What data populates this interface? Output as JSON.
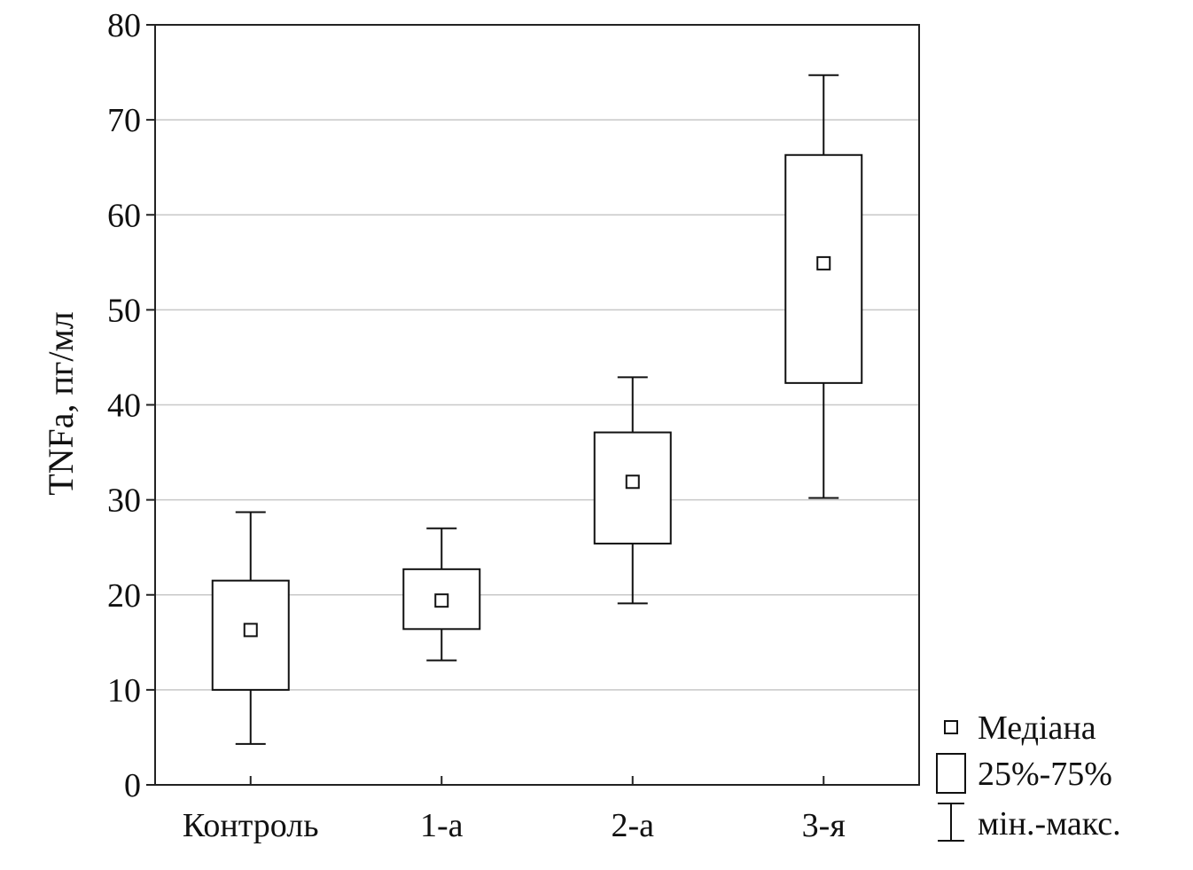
{
  "chart_data": {
    "type": "boxplot",
    "title": "",
    "xlabel": "",
    "ylabel": "TNFa, пг/мл",
    "ylim": [
      0,
      80
    ],
    "yticks": [
      0,
      10,
      20,
      30,
      40,
      50,
      60,
      70,
      80
    ],
    "grid": true,
    "legend_position": "bottom-right",
    "categories": [
      "Контроль",
      "1-а",
      "2-а",
      "3-я"
    ],
    "series": [
      {
        "median": [
          16.3,
          19.4,
          31.9,
          54.9
        ],
        "q1": [
          10.0,
          16.4,
          25.4,
          42.3
        ],
        "q3": [
          21.5,
          22.7,
          37.1,
          66.3
        ],
        "min": [
          4.3,
          13.1,
          19.1,
          30.2
        ],
        "max": [
          28.7,
          27.0,
          42.9,
          74.7
        ]
      }
    ],
    "legend": [
      {
        "symbol": "median",
        "label": "Медіана"
      },
      {
        "symbol": "box",
        "label": "25%-75%"
      },
      {
        "symbol": "whisker",
        "label": "мін.-макс."
      }
    ]
  }
}
